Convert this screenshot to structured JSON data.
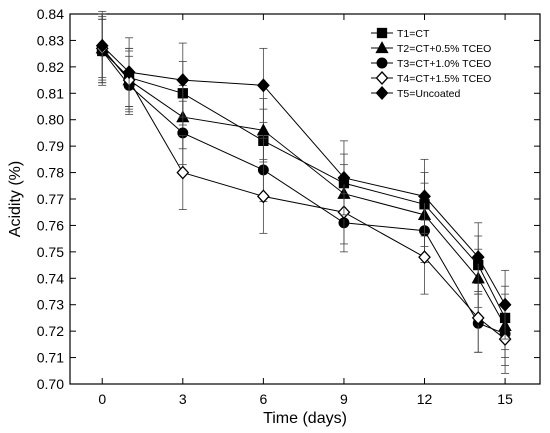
{
  "chart_data": {
    "type": "line",
    "title": "",
    "xlabel": "Time (days)",
    "ylabel": "Acidity (%)",
    "x": [
      0,
      1,
      3,
      6,
      9,
      12,
      14,
      15
    ],
    "xticks": [
      0,
      3,
      6,
      9,
      12,
      15
    ],
    "yticks": [
      0.7,
      0.71,
      0.72,
      0.73,
      0.74,
      0.75,
      0.76,
      0.77,
      0.78,
      0.79,
      0.8,
      0.81,
      0.82,
      0.83,
      0.84
    ],
    "xlim": [
      -1.2,
      16.3
    ],
    "ylim": [
      0.7,
      0.84
    ],
    "grid": false,
    "legend_position": "top-right",
    "series": [
      {
        "name": "T1=CT",
        "marker": "square",
        "filled": true,
        "values": [
          0.826,
          0.816,
          0.81,
          0.792,
          0.776,
          0.768,
          0.745,
          0.725
        ],
        "errors": [
          0.012,
          0.011,
          0.012,
          0.012,
          0.011,
          0.012,
          0.011,
          0.012
        ]
      },
      {
        "name": "T2=CT+0.5% TCEO",
        "marker": "triangle",
        "filled": true,
        "values": [
          0.827,
          0.815,
          0.801,
          0.796,
          0.772,
          0.764,
          0.74,
          0.722
        ],
        "errors": [
          0.012,
          0.011,
          0.012,
          0.012,
          0.011,
          0.012,
          0.011,
          0.012
        ]
      },
      {
        "name": "T3=CT+1.0% TCEO",
        "marker": "circle",
        "filled": true,
        "values": [
          0.826,
          0.813,
          0.795,
          0.781,
          0.761,
          0.758,
          0.723,
          0.719
        ],
        "errors": [
          0.012,
          0.011,
          0.012,
          0.012,
          0.011,
          0.012,
          0.011,
          0.012
        ]
      },
      {
        "name": "T4=CT+1.5% TCEO",
        "marker": "diamond",
        "filled": false,
        "values": [
          0.827,
          0.815,
          0.78,
          0.771,
          0.765,
          0.748,
          0.725,
          0.717
        ],
        "errors": [
          0.014,
          0.012,
          0.014,
          0.014,
          0.012,
          0.014,
          0.013,
          0.013
        ]
      },
      {
        "name": "T5=Uncoated",
        "marker": "diamond",
        "filled": true,
        "values": [
          0.828,
          0.818,
          0.815,
          0.813,
          0.778,
          0.771,
          0.748,
          0.73
        ],
        "errors": [
          0.012,
          0.013,
          0.014,
          0.014,
          0.014,
          0.014,
          0.013,
          0.013
        ]
      }
    ]
  }
}
